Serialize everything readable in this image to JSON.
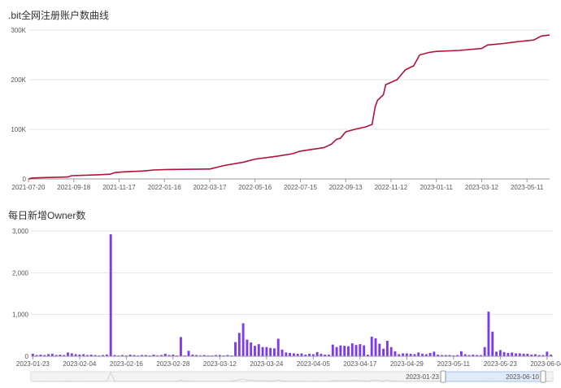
{
  "chart_data": [
    {
      "type": "line",
      "title": ".bit全网注册账户数曲线",
      "ylim": [
        0,
        300000
      ],
      "y_tick_labels": [
        "0",
        "100K",
        "200K",
        "300K"
      ],
      "y_ticks": [
        0,
        100000,
        200000,
        300000
      ],
      "x_tick_labels": [
        "2021-07-20",
        "2021-09-18",
        "2021-11-17",
        "2022-01-16",
        "2022-03-17",
        "2022-05-16",
        "2022-07-15",
        "2022-09-13",
        "2022-11-12",
        "2023-01-11",
        "2023-03-12",
        "2023-05-11"
      ],
      "x_start": "2021-07-20",
      "x_end": "2023-06-10",
      "color": "#b0123a",
      "grid": true,
      "points": [
        [
          "2021-07-20",
          0
        ],
        [
          "2021-07-25",
          2000
        ],
        [
          "2021-08-15",
          3000
        ],
        [
          "2021-09-10",
          4000
        ],
        [
          "2021-09-15",
          6500
        ],
        [
          "2021-10-15",
          8000
        ],
        [
          "2021-11-05",
          9500
        ],
        [
          "2021-11-12",
          13000
        ],
        [
          "2021-11-25",
          14500
        ],
        [
          "2021-12-20",
          16000
        ],
        [
          "2022-01-01",
          18000
        ],
        [
          "2022-01-20",
          19000
        ],
        [
          "2022-02-20",
          19500
        ],
        [
          "2022-03-17",
          20000
        ],
        [
          "2022-04-05",
          27000
        ],
        [
          "2022-05-01",
          34000
        ],
        [
          "2022-05-16",
          40000
        ],
        [
          "2022-06-15",
          46000
        ],
        [
          "2022-07-05",
          51000
        ],
        [
          "2022-07-15",
          56000
        ],
        [
          "2022-08-15",
          63000
        ],
        [
          "2022-08-25",
          70000
        ],
        [
          "2022-09-01",
          80000
        ],
        [
          "2022-09-06",
          82000
        ],
        [
          "2022-09-13",
          95000
        ],
        [
          "2022-09-25",
          100000
        ],
        [
          "2022-10-10",
          105000
        ],
        [
          "2022-10-18",
          110000
        ],
        [
          "2022-10-22",
          145000
        ],
        [
          "2022-10-25",
          158000
        ],
        [
          "2022-11-02",
          170000
        ],
        [
          "2022-11-05",
          190000
        ],
        [
          "2022-11-20",
          200000
        ],
        [
          "2022-12-01",
          220000
        ],
        [
          "2022-12-12",
          228000
        ],
        [
          "2022-12-20",
          250000
        ],
        [
          "2023-01-01",
          255000
        ],
        [
          "2023-01-11",
          257000
        ],
        [
          "2023-02-10",
          259000
        ],
        [
          "2023-03-12",
          263000
        ],
        [
          "2023-03-20",
          270000
        ],
        [
          "2023-04-10",
          273000
        ],
        [
          "2023-05-01",
          277000
        ],
        [
          "2023-05-20",
          280000
        ],
        [
          "2023-05-30",
          288000
        ],
        [
          "2023-06-10",
          290000
        ]
      ]
    },
    {
      "type": "bar",
      "title": "每日新增Owner数",
      "ylim": [
        0,
        3000
      ],
      "y_tick_labels": [
        "0",
        "1,000",
        "2,000",
        "3,000"
      ],
      "y_ticks": [
        0,
        1000,
        2000,
        3000
      ],
      "x_tick_labels": [
        "2023-01-23",
        "2023-02-04",
        "2023-02-16",
        "2023-02-28",
        "2023-03-12",
        "2023-03-24",
        "2023-04-05",
        "2023-04-17",
        "2023-04-29",
        "2023-05-11",
        "2023-05-23",
        "2023-06-04"
      ],
      "x_start": "2023-01-23",
      "color": "#7c3aed",
      "grid": true,
      "values": [
        60,
        30,
        40,
        30,
        50,
        60,
        30,
        40,
        30,
        90,
        70,
        50,
        40,
        50,
        30,
        40,
        30,
        20,
        30,
        40,
        2920,
        30,
        20,
        30,
        20,
        40,
        30,
        20,
        30,
        30,
        20,
        40,
        20,
        30,
        60,
        30,
        40,
        20,
        460,
        20,
        130,
        40,
        30,
        20,
        30,
        20,
        20,
        30,
        30,
        20,
        30,
        20,
        340,
        560,
        790,
        400,
        330,
        250,
        290,
        220,
        220,
        200,
        190,
        420,
        160,
        90,
        80,
        70,
        60,
        70,
        40,
        60,
        50,
        100,
        60,
        40,
        40,
        280,
        220,
        260,
        250,
        240,
        310,
        270,
        290,
        260,
        40,
        470,
        430,
        300,
        180,
        370,
        220,
        120,
        50,
        70,
        70,
        60,
        50,
        90,
        60,
        50,
        80,
        110,
        40,
        30,
        30,
        30,
        20,
        30,
        120,
        50,
        30,
        40,
        30,
        30,
        220,
        1070,
        590,
        110,
        150,
        100,
        80,
        90,
        70,
        70,
        60,
        60,
        40,
        50,
        30,
        30,
        110,
        40
      ],
      "dataZoom": {
        "start_label": "2023-01-23",
        "end_label": "2023-06-10"
      }
    }
  ]
}
